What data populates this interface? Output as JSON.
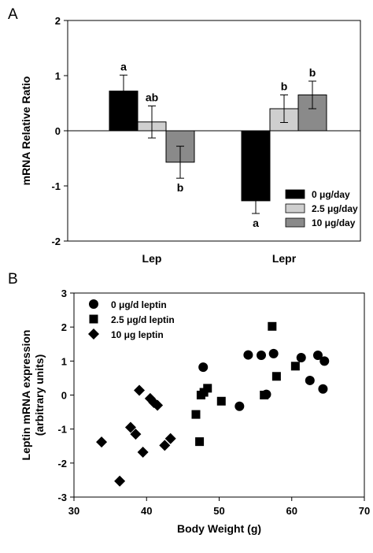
{
  "chart_data": [
    {
      "panel_label": "A",
      "type": "bar",
      "ylabel": "mRNA Relative Ratio",
      "ylim": [
        -2,
        2
      ],
      "yticks": [
        -2,
        -1,
        0,
        1,
        2
      ],
      "categories": [
        "Lep",
        "Lepr"
      ],
      "legend_position": "bottom-right",
      "series": [
        {
          "name": "0 μg/day",
          "color": "#000000",
          "values": [
            0.72,
            -1.27
          ],
          "errors": [
            0.29,
            0.23
          ],
          "labels": [
            "a",
            "a"
          ]
        },
        {
          "name": "2.5 μg/day",
          "color": "#cfcfcf",
          "values": [
            0.16,
            0.4
          ],
          "errors": [
            0.29,
            0.25
          ],
          "labels": [
            "ab",
            "b"
          ]
        },
        {
          "name": "10 μg/day",
          "color": "#8a8a8a",
          "values": [
            -0.57,
            0.65
          ],
          "errors": [
            0.29,
            0.25
          ],
          "labels": [
            "b",
            "b"
          ]
        }
      ]
    },
    {
      "panel_label": "B",
      "type": "scatter",
      "xlabel": "Body Weight (g)",
      "ylabel": "Leptin mRNA expression",
      "ylabel2": "(arbitrary units)",
      "xlim": [
        30,
        70
      ],
      "ylim": [
        -3,
        3
      ],
      "xticks": [
        30,
        40,
        50,
        60,
        70
      ],
      "yticks": [
        -3,
        -2,
        -1,
        0,
        1,
        2,
        3
      ],
      "legend_position": "top-left",
      "series": [
        {
          "name": "0 μg/d leptin",
          "marker": "circle",
          "x": [
            47.8,
            52.8,
            54.0,
            55.8,
            56.5,
            57.5,
            61.3,
            62.5,
            63.6,
            64.3,
            64.5
          ],
          "y": [
            0.82,
            -0.33,
            1.18,
            1.17,
            0.02,
            1.22,
            1.1,
            0.43,
            1.17,
            0.18,
            1.0
          ]
        },
        {
          "name": "2.5 μg/d leptin",
          "marker": "square",
          "x": [
            46.8,
            47.3,
            47.5,
            47.9,
            48.4,
            50.3,
            56.2,
            57.3,
            57.9,
            60.5
          ],
          "y": [
            -0.57,
            -1.37,
            0.0,
            0.08,
            0.2,
            -0.18,
            0.0,
            2.02,
            0.55,
            0.85
          ]
        },
        {
          "name": "10 μg leptin",
          "marker": "diamond",
          "x": [
            33.8,
            36.3,
            37.8,
            38.5,
            39.0,
            39.5,
            40.5,
            41.0,
            41.5,
            42.5,
            43.3
          ],
          "y": [
            -1.38,
            -2.53,
            -0.95,
            -1.15,
            0.14,
            -1.68,
            -0.1,
            -0.22,
            -0.3,
            -1.48,
            -1.28
          ]
        }
      ]
    }
  ]
}
